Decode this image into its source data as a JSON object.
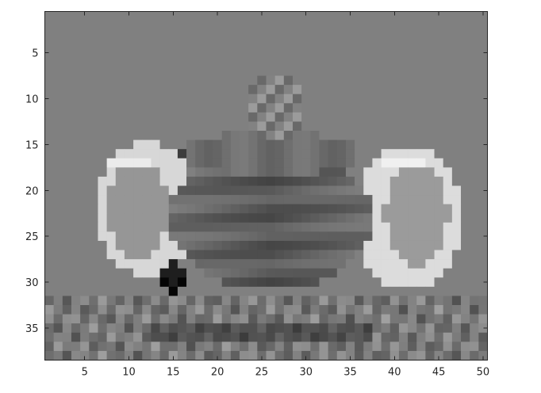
{
  "chart_data": {
    "type": "heatmap",
    "title": "",
    "xlabel": "",
    "ylabel": "",
    "colormap": "gray",
    "background_value": "#808080",
    "x_range": [
      0.5,
      50.5
    ],
    "y_range": [
      0.5,
      38.5
    ],
    "y_direction": "top-to-bottom",
    "grid": false,
    "x_ticks": [
      5,
      10,
      15,
      20,
      25,
      30,
      35,
      40,
      45,
      50
    ],
    "y_ticks": [
      5,
      10,
      15,
      20,
      25,
      30,
      35
    ],
    "image_grid": {
      "columns": 50,
      "rows": 38,
      "description_of_content": "",
      "regions": [
        {
          "kind": "dark-spot",
          "cx": 15,
          "cy": 30,
          "r": 1.2,
          "value": 5
        },
        {
          "kind": "dark-spot",
          "cx": 15,
          "cy": 29,
          "r": 1.2,
          "value": 30
        },
        {
          "kind": "dark-spot",
          "cx": 16,
          "cy": 16,
          "r": 0.8,
          "value": 60
        }
      ]
    }
  }
}
